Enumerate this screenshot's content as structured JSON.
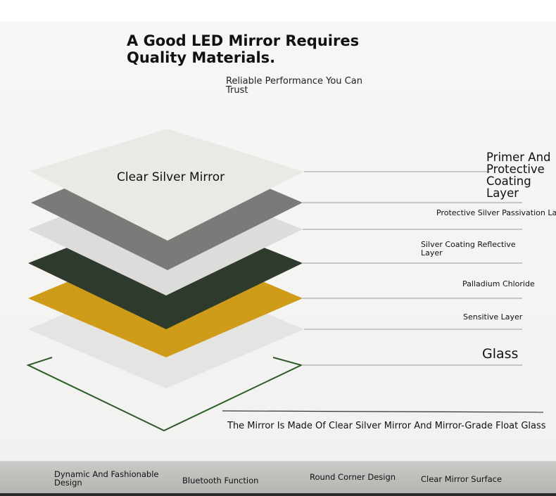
{
  "header": {
    "title": "A Good LED Mirror Requires Quality Materials.",
    "subtitle": "Reliable Performance You Can Trust"
  },
  "diagram": {
    "mirror_label": "Clear Silver Mirror",
    "layers": [
      {
        "label": "Primer And Protective Coating Layer",
        "color": "#e9e9e6"
      },
      {
        "label": "Protective Silver Passivation Layer",
        "color": "#7a7a78"
      },
      {
        "label": "Silver Coating Reflective Layer",
        "color": "#dcdcda"
      },
      {
        "label": "Palladium Chloride",
        "color": "#2e3a2c"
      },
      {
        "label": "Sensitive Layer",
        "color": "#cf9c1a"
      },
      {
        "label": "Glass",
        "color": "#e4e4e2"
      }
    ],
    "glass_outline_color": "#2f5a2a",
    "caption": "The Mirror Is Made Of Clear Silver Mirror And Mirror-Grade Float Glass"
  },
  "features": [
    {
      "label": "Dynamic And Fashionable Design"
    },
    {
      "label": "Bluetooth Function"
    },
    {
      "label": "Round Corner Design"
    },
    {
      "label": "Clear Mirror Surface"
    }
  ]
}
